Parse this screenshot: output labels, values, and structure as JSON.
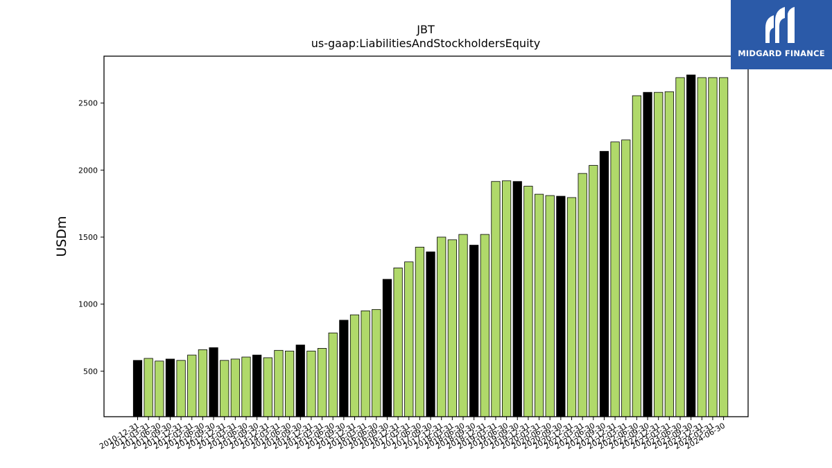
{
  "chart_data": {
    "type": "bar",
    "title": "JBT",
    "subtitle": "us-gaap:LiabilitiesAndStockholdersEquity",
    "xlabel": "",
    "ylabel": "USDm",
    "ylim": [
      160,
      2850
    ],
    "yticks": [
      500,
      1000,
      1500,
      2000,
      2500
    ],
    "grid": false,
    "colors": {
      "annual": "#000000",
      "quarter": "#b0d96a",
      "edge": "#000000"
    },
    "categories": [
      "2010-12-31",
      "2011-03-31",
      "2011-06-30",
      "2011-09-30",
      "2011-12-31",
      "2012-03-31",
      "2012-06-30",
      "2012-09-30",
      "2012-12-31",
      "2013-03-31",
      "2013-06-30",
      "2013-09-30",
      "2013-12-31",
      "2014-03-31",
      "2014-06-30",
      "2014-09-30",
      "2014-12-31",
      "2015-03-31",
      "2015-06-30",
      "2015-09-30",
      "2015-12-31",
      "2016-03-31",
      "2016-06-30",
      "2016-09-30",
      "2016-12-31",
      "2017-03-31",
      "2017-06-30",
      "2017-09-30",
      "2017-12-31",
      "2018-03-31",
      "2018-06-30",
      "2018-09-30",
      "2018-12-31",
      "2019-03-31",
      "2019-06-30",
      "2019-09-30",
      "2019-12-31",
      "2020-03-31",
      "2020-06-30",
      "2020-09-30",
      "2020-12-31",
      "2021-03-31",
      "2021-06-30",
      "2021-09-30",
      "2021-12-31",
      "2022-03-31",
      "2022-06-30",
      "2022-09-30",
      "2022-12-31",
      "2023-03-31",
      "2023-06-30",
      "2023-09-30",
      "2023-12-31",
      "2024-03-31",
      "2024-06-30"
    ],
    "values": [
      580,
      595,
      575,
      590,
      580,
      620,
      660,
      675,
      580,
      590,
      605,
      620,
      600,
      655,
      650,
      695,
      650,
      670,
      785,
      880,
      920,
      950,
      960,
      1185,
      1270,
      1315,
      1425,
      1390,
      1500,
      1480,
      1520,
      1440,
      1520,
      1915,
      1920,
      1915,
      1880,
      1820,
      1810,
      1805,
      1795,
      1975,
      2035,
      2140,
      2210,
      2225,
      2555,
      2580,
      2580,
      2585,
      2690,
      2710,
      2690,
      2690,
      2690
    ],
    "annual": [
      true,
      false,
      false,
      true,
      false,
      false,
      false,
      true,
      false,
      false,
      false,
      true,
      false,
      false,
      false,
      true,
      false,
      false,
      false,
      true,
      false,
      false,
      false,
      true,
      false,
      false,
      false,
      true,
      false,
      false,
      false,
      true,
      false,
      false,
      false,
      true,
      false,
      false,
      false,
      true,
      false,
      false,
      false,
      true,
      false,
      false,
      false,
      true,
      false,
      false,
      false,
      true,
      false,
      false,
      false
    ]
  },
  "brand": {
    "name": "MIDGARD FINANCE",
    "color": "#2b5aa8",
    "icon": "midgard-logo-icon"
  }
}
